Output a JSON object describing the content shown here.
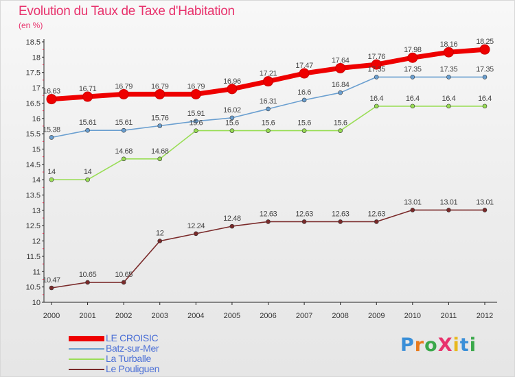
{
  "title": "Evolution du Taux de Taxe d'Habitation",
  "unit_label": "(en %)",
  "brand": {
    "text": "ProXiti",
    "letter_colors": [
      "#3a8fd8",
      "#e87a1c",
      "#3aa84a",
      "#e8336d",
      "#e8b81c",
      "#3a8fd8",
      "#3aa84a"
    ]
  },
  "chart_data": {
    "type": "line",
    "title": "Evolution du Taux de Taxe d'Habitation",
    "ylabel": "(en %)",
    "xlabel": "",
    "x": [
      "2000",
      "2001",
      "2002",
      "2003",
      "2004",
      "2005",
      "2006",
      "2007",
      "2008",
      "2009",
      "2010",
      "2011",
      "2012"
    ],
    "ylim": [
      10,
      18.5
    ],
    "yticks": [
      "10",
      "10.5",
      "11",
      "11.5",
      "12",
      "12.5",
      "13",
      "13.5",
      "14",
      "14.5",
      "15",
      "15.5",
      "16",
      "16.5",
      "17",
      "17.5",
      "18",
      "18.5"
    ],
    "grid": false,
    "legend_position": "bottom-left",
    "series": [
      {
        "name": "LE CROISIC",
        "color": "#ee0000",
        "line_width": "thick",
        "values": [
          16.63,
          16.71,
          16.79,
          16.79,
          16.79,
          16.96,
          17.21,
          17.47,
          17.64,
          17.76,
          17.98,
          18.16,
          18.25
        ],
        "labels": [
          "16.63",
          "16.71",
          "16.79",
          "16.79",
          "16.79",
          "16.96",
          "17.21",
          "17.47",
          "17.64",
          "17.76",
          "17.98",
          "18.16",
          "18.25"
        ]
      },
      {
        "name": "Batz-sur-Mer",
        "color": "#6a9fd0",
        "line_width": "thin",
        "values": [
          15.38,
          15.61,
          15.61,
          15.76,
          15.91,
          16.02,
          16.31,
          16.6,
          16.84,
          17.35,
          17.35,
          17.35,
          17.35
        ],
        "labels": [
          "15.38",
          "15.61",
          "15.61",
          "15.76",
          "15.91",
          "16.02",
          "16.31",
          "16.6",
          "16.84",
          "17.35",
          "17.35",
          "17.35",
          "17.35"
        ]
      },
      {
        "name": "La Turballe",
        "color": "#99dd55",
        "line_width": "thin",
        "values": [
          14,
          14,
          14.68,
          14.68,
          15.6,
          15.6,
          15.6,
          15.6,
          15.6,
          16.4,
          16.4,
          16.4,
          16.4
        ],
        "labels": [
          "14",
          "14",
          "14.68",
          "14.68",
          "15.6",
          "15.6",
          "15.6",
          "15.6",
          "15.6",
          "16.4",
          "16.4",
          "16.4",
          "16.4"
        ]
      },
      {
        "name": "Le Pouliguen",
        "color": "#7a2a2a",
        "line_width": "thin",
        "values": [
          10.47,
          10.65,
          10.65,
          12,
          12.24,
          12.48,
          12.63,
          12.63,
          12.63,
          12.63,
          13.01,
          13.01,
          13.01
        ],
        "labels": [
          "10.47",
          "10.65",
          "10.65",
          "12",
          "12.24",
          "12.48",
          "12.63",
          "12.63",
          "12.63",
          "12.63",
          "13.01",
          "13.01",
          "13.01"
        ]
      }
    ]
  }
}
